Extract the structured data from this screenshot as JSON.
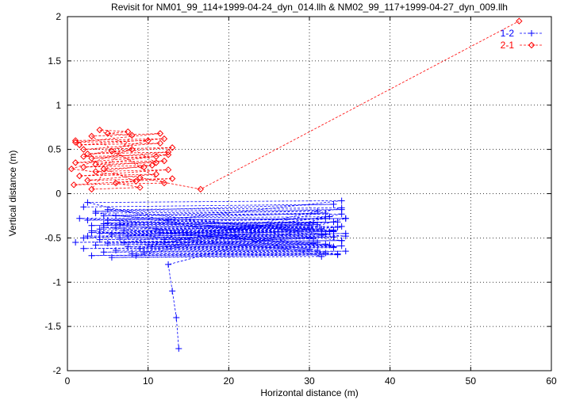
{
  "chart_data": {
    "type": "line",
    "title": "Revisit for NM01_99_114+1999-04-24_dyn_014.llh & NM02_99_117+1999-04-27_dyn_009.llh",
    "xlabel": "Horizontal distance (m)",
    "ylabel": "Vertical distance (m)",
    "xlim": [
      0,
      60
    ],
    "ylim": [
      -2,
      2
    ],
    "xticks": [
      0,
      10,
      20,
      30,
      40,
      50,
      60
    ],
    "yticks": [
      -2,
      -1.5,
      -1,
      -0.5,
      0,
      0.5,
      1,
      1.5,
      2
    ],
    "xtick_labels": [
      "0",
      "10",
      "20",
      "30",
      "40",
      "50",
      "60"
    ],
    "ytick_labels": [
      "-2",
      "-1.5",
      "-1",
      "-0.5",
      "0",
      "0.5",
      "1",
      "1.5",
      "2"
    ],
    "grid": true,
    "legend_position": "top-right",
    "series": [
      {
        "name": "1-2",
        "color": "#0000ff",
        "marker": "plus",
        "line_style": "dashed",
        "x": [
          2.0,
          33.0,
          3.5,
          34.0,
          4.5,
          32.0,
          2.5,
          34.5,
          5.0,
          33.5,
          3.0,
          31.0,
          6.0,
          34.0,
          4.0,
          30.0,
          7.0,
          33.0,
          3.0,
          32.5,
          5.5,
          34.5,
          2.5,
          31.5,
          6.5,
          33.0,
          4.0,
          30.5,
          1.0,
          34.0,
          5.0,
          31.0,
          3.5,
          32.0,
          7.5,
          34.0,
          2.0,
          33.0,
          6.0,
          30.0,
          4.5,
          34.5,
          8.0,
          32.0,
          3.0,
          33.5,
          5.5,
          31.5,
          2.5,
          34.0,
          6.5,
          30.5,
          4.0,
          33.0,
          1.5,
          32.5,
          7.0,
          34.0,
          3.5,
          31.0,
          9.0,
          33.0,
          4.5,
          30.0,
          2.0,
          34.5,
          5.0,
          32.0,
          8.5,
          33.5,
          3.0,
          31.5,
          6.0,
          34.0,
          10.0,
          30.5,
          4.5,
          33.0,
          7.5,
          32.0,
          5.0,
          34.0,
          9.5,
          31.0,
          11.0,
          33.5,
          12.0,
          30.0,
          10.5,
          32.5,
          11.5,
          33.0,
          12.5,
          34.5,
          12.5,
          13.0,
          13.5,
          13.8
        ],
        "y": [
          -0.15,
          -0.12,
          -0.2,
          -0.18,
          -0.25,
          -0.22,
          -0.3,
          -0.28,
          -0.33,
          -0.32,
          -0.36,
          -0.35,
          -0.38,
          -0.37,
          -0.4,
          -0.39,
          -0.42,
          -0.41,
          -0.44,
          -0.43,
          -0.46,
          -0.45,
          -0.48,
          -0.47,
          -0.5,
          -0.49,
          -0.52,
          -0.51,
          -0.55,
          -0.53,
          -0.56,
          -0.55,
          -0.58,
          -0.57,
          -0.6,
          -0.59,
          -0.62,
          -0.61,
          -0.64,
          -0.63,
          -0.66,
          -0.65,
          -0.68,
          -0.67,
          -0.7,
          -0.69,
          -0.72,
          -0.71,
          -0.1,
          -0.08,
          -0.35,
          -0.33,
          -0.45,
          -0.43,
          -0.28,
          -0.26,
          -0.55,
          -0.53,
          -0.22,
          -0.2,
          -0.62,
          -0.6,
          -0.38,
          -0.36,
          -0.5,
          -0.48,
          -0.3,
          -0.28,
          -0.7,
          -0.68,
          -0.42,
          -0.4,
          -0.25,
          -0.23,
          -0.58,
          -0.56,
          -0.34,
          -0.32,
          -0.48,
          -0.46,
          -0.18,
          -0.16,
          -0.66,
          -0.64,
          -0.4,
          -0.38,
          -0.52,
          -0.5,
          -0.6,
          -0.58,
          -0.44,
          -0.42,
          -0.3,
          -0.28,
          -0.8,
          -1.1,
          -1.4,
          -1.75
        ]
      },
      {
        "name": "2-1",
        "color": "#ff0000",
        "marker": "diamond",
        "line_style": "dashed",
        "x": [
          1.0,
          12.0,
          1.5,
          11.5,
          2.0,
          13.0,
          2.5,
          12.5,
          3.0,
          11.0,
          1.0,
          12.0,
          2.0,
          10.5,
          3.5,
          12.5,
          1.5,
          11.0,
          2.5,
          13.0,
          0.8,
          12.0,
          3.0,
          11.5,
          1.0,
          10.0,
          2.0,
          12.5,
          3.5,
          11.0,
          4.0,
          7.5,
          5.0,
          8.0,
          3.0,
          9.0,
          6.0,
          8.5,
          4.5,
          9.5,
          5.5,
          8.0,
          0.5,
          9.0,
          16.5,
          56.0
        ],
        "y": [
          0.6,
          0.62,
          0.55,
          0.57,
          0.5,
          0.52,
          0.45,
          0.47,
          0.4,
          0.42,
          0.35,
          0.37,
          0.3,
          0.32,
          0.25,
          0.27,
          0.2,
          0.22,
          0.15,
          0.17,
          0.1,
          0.12,
          0.65,
          0.68,
          0.58,
          0.6,
          0.42,
          0.44,
          0.33,
          0.35,
          0.72,
          0.7,
          0.68,
          0.66,
          0.05,
          0.07,
          0.12,
          0.14,
          0.28,
          0.3,
          0.48,
          0.5,
          0.28,
          0.18,
          0.05,
          1.95
        ]
      }
    ]
  }
}
